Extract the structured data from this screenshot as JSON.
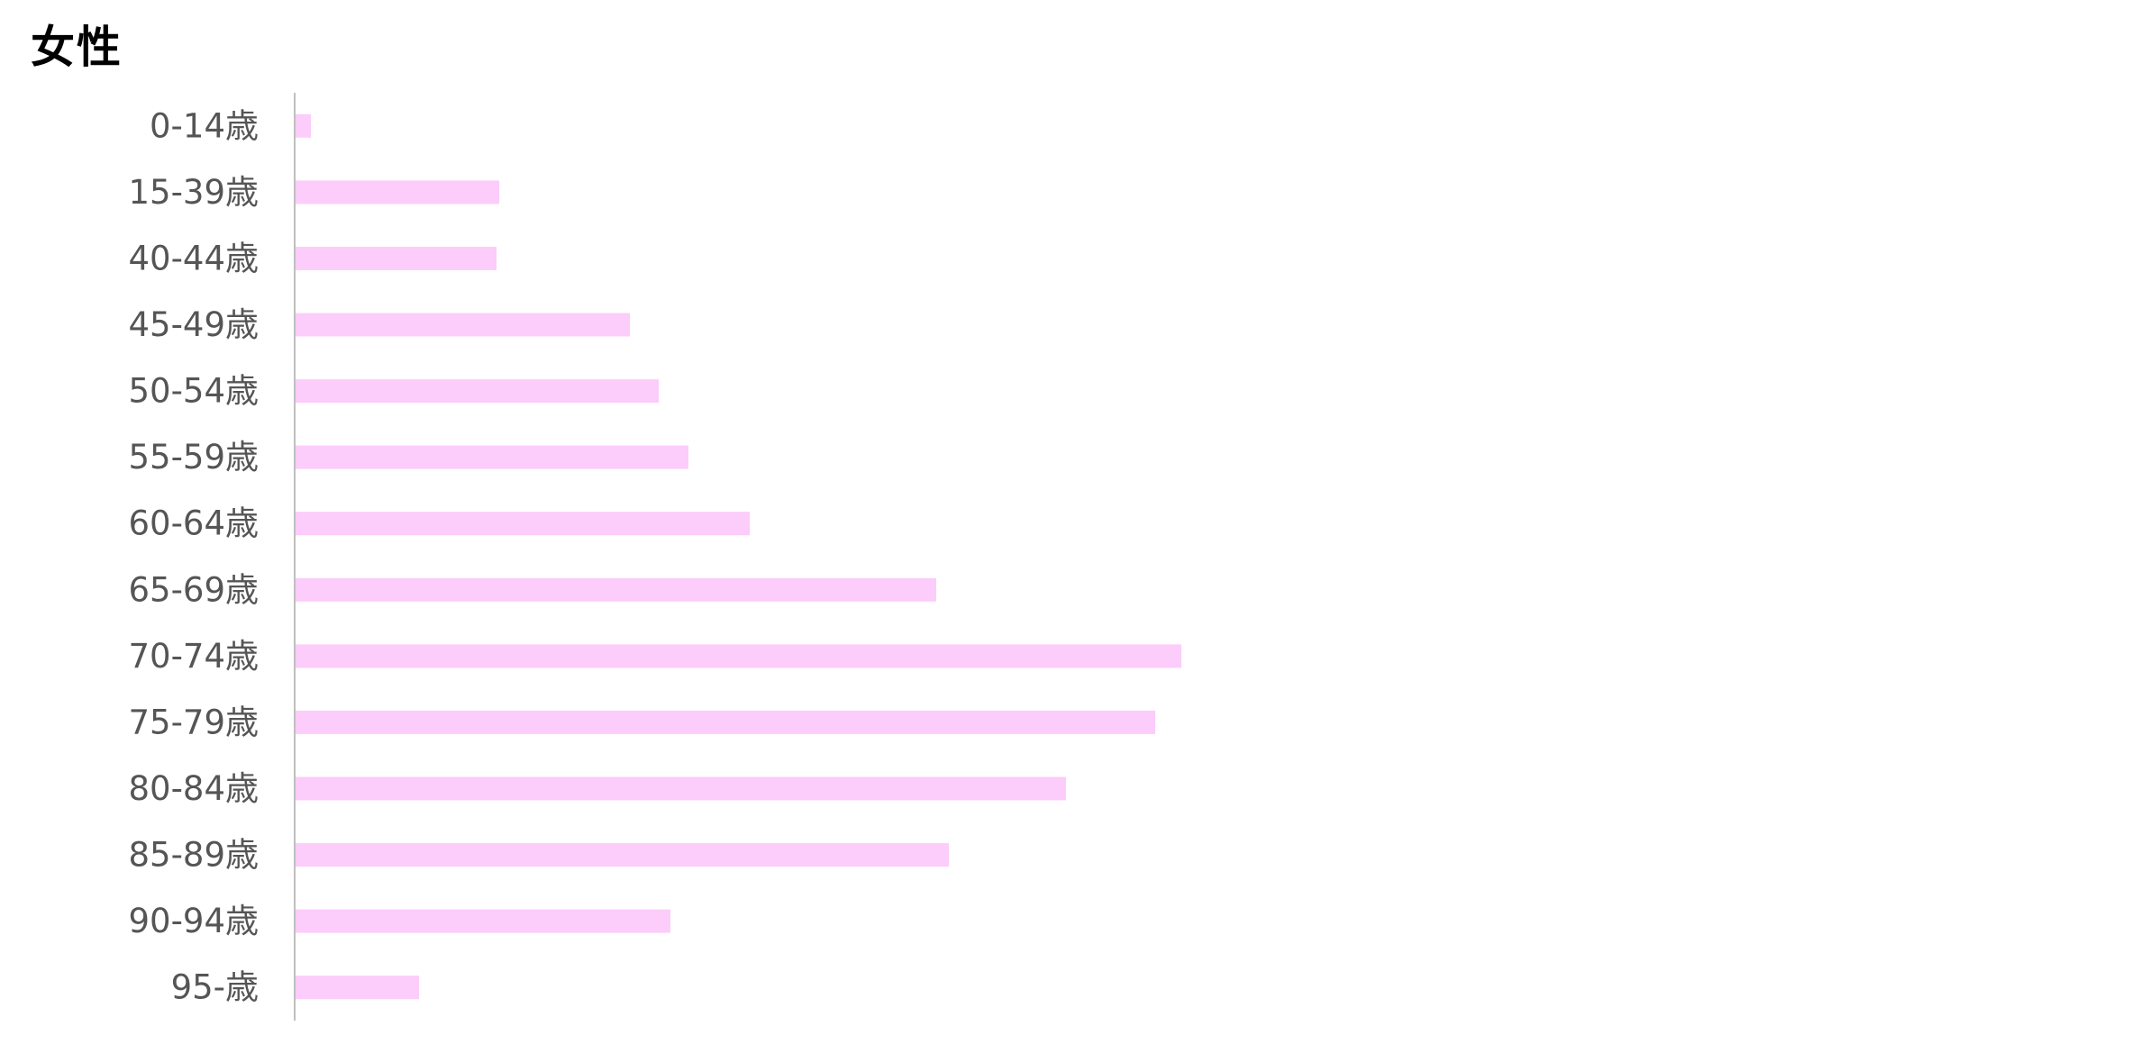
{
  "chart_data": {
    "type": "bar",
    "orientation": "horizontal",
    "title": "女性",
    "categories": [
      "0-14歳",
      "15-39歳",
      "40-44歳",
      "45-49歳",
      "50-54歳",
      "55-59歳",
      "60-64歳",
      "65-69歳",
      "70-74歳",
      "75-79歳",
      "80-84歳",
      "85-89歳",
      "90-94歳",
      "95-歳"
    ],
    "values": [
      1.7,
      22.6,
      22.3,
      37.1,
      40.3,
      43.6,
      50.4,
      71.1,
      98.3,
      95.4,
      85.5,
      72.5,
      41.6,
      13.7
    ],
    "xlim": [
      0,
      100
    ],
    "grid": false,
    "legend": "none",
    "bar_color": "#FCCCFA",
    "axis_color": "#BFBFBF"
  }
}
